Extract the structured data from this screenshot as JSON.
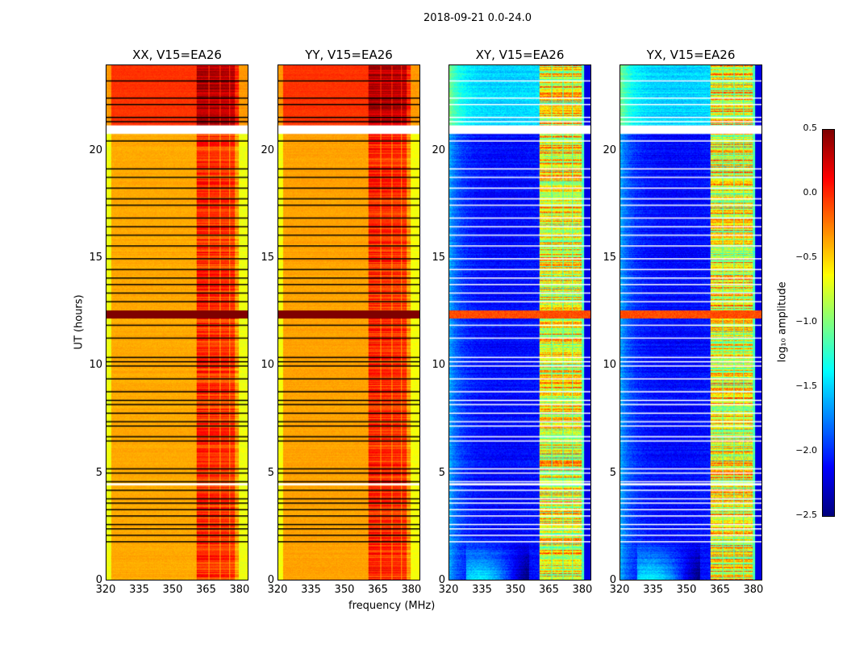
{
  "chart_data": {
    "type": "heatmap",
    "suptitle": "2018-09-21 0.0-24.0",
    "xlabel": "frequency (MHz)",
    "ylabel": "UT (hours)",
    "xlim": [
      320,
      384
    ],
    "ylim": [
      0,
      24
    ],
    "xticks": [
      "320",
      "335",
      "350",
      "365",
      "380"
    ],
    "yticks": [
      "0",
      "5",
      "10",
      "15",
      "20"
    ],
    "panels": [
      {
        "title": "XX, V15=EA26",
        "pol": "parallel",
        "base": -0.4,
        "late_base": -0.05,
        "flag_color": "black"
      },
      {
        "title": "YY, V15=EA26",
        "pol": "parallel",
        "base": -0.38,
        "late_base": -0.05,
        "flag_color": "black"
      },
      {
        "title": "XY, V15=EA26",
        "pol": "cross",
        "base": -2.2,
        "late_base": -1.6,
        "flag_color": "white"
      },
      {
        "title": "YX, V15=EA26",
        "pol": "cross",
        "base": -2.2,
        "late_base": -1.6,
        "flag_color": "white"
      }
    ],
    "rfi_bands_mhz": [
      [
        360.5,
        366
      ],
      [
        366.5,
        371
      ],
      [
        371.5,
        375.5
      ],
      [
        376,
        380
      ]
    ],
    "flagged_gap_hours": [
      [
        20.8,
        21.2
      ],
      [
        4.4,
        4.5
      ]
    ],
    "strong_rfi_hours": [
      [
        12.2,
        12.6
      ]
    ],
    "flag_line_hours": [
      1.8,
      2.1,
      2.4,
      2.6,
      3.0,
      3.3,
      3.6,
      3.8,
      4.2,
      4.6,
      5.0,
      5.2,
      6.5,
      6.7,
      7.2,
      7.4,
      7.8,
      8.2,
      8.4,
      8.8,
      9.4,
      10.0,
      10.2,
      10.4,
      11.3,
      11.9,
      13.0,
      13.4,
      13.8,
      14.1,
      14.5,
      15.0,
      15.6,
      16.1,
      16.5,
      16.9,
      17.5,
      17.8,
      18.3,
      18.8,
      19.2,
      20.5,
      21.4,
      21.6,
      22.2,
      22.5,
      23.3
    ],
    "colorbar": {
      "label": "log₁₀ amplitude",
      "range": [
        -2.5,
        0.5
      ],
      "ticks": [
        "0.5",
        "0.0",
        "−0.5",
        "−1.0",
        "−1.5",
        "−2.0",
        "−2.5"
      ],
      "colormap": "jet"
    }
  }
}
